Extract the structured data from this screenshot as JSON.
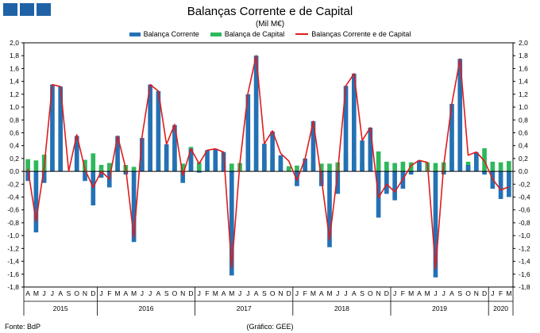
{
  "header": {
    "title": "Balanças Corrente e de Capital",
    "subtitle": "(Mil M€)"
  },
  "footer": {
    "source": "Fonte: BdP",
    "credit": "(Gráfico: GEE)"
  },
  "colors": {
    "current_account": "#2471b5",
    "capital_account": "#2eb85c",
    "combined": "#e11b1b",
    "logo": "#1f62a6"
  },
  "chart_data": {
    "type": "bar",
    "title": "Balanças Corrente e de Capital",
    "subtitle": "(Mil M€)",
    "ylim": [
      -1.8,
      2.0
    ],
    "yticks": [
      "2,0",
      "1,8",
      "1,6",
      "1,4",
      "1,2",
      "1,0",
      "0,8",
      "0,6",
      "0,4",
      "0,2",
      "0,0",
      "-0,2",
      "-0,4",
      "-0,6",
      "-0,8",
      "-1,0",
      "-1,2",
      "-1,4",
      "-1,6",
      "-1,8"
    ],
    "grid": false,
    "legend_position": "top-center",
    "categories": [
      "A",
      "M",
      "J",
      "J",
      "A",
      "S",
      "O",
      "N",
      "D",
      "J",
      "F",
      "M",
      "A",
      "M",
      "J",
      "J",
      "A",
      "S",
      "O",
      "N",
      "D",
      "J",
      "F",
      "M",
      "A",
      "M",
      "J",
      "J",
      "A",
      "S",
      "O",
      "N",
      "D",
      "J",
      "F",
      "M",
      "A",
      "M",
      "J",
      "J",
      "A",
      "S",
      "O",
      "N",
      "D",
      "J",
      "F",
      "M",
      "A",
      "M",
      "J",
      "J",
      "A",
      "S",
      "O",
      "N",
      "D",
      "J",
      "F",
      "M"
    ],
    "years": [
      {
        "label": "2015",
        "start": 0,
        "end": 9
      },
      {
        "label": "2016",
        "start": 9,
        "end": 21
      },
      {
        "label": "2017",
        "start": 21,
        "end": 33
      },
      {
        "label": "2018",
        "start": 33,
        "end": 45
      },
      {
        "label": "2019",
        "start": 45,
        "end": 57
      },
      {
        "label": "2020",
        "start": 57,
        "end": 60
      }
    ],
    "series": [
      {
        "name": "Balança Corrente",
        "kind": "bar",
        "values": [
          -0.15,
          -0.95,
          -0.18,
          1.35,
          1.32,
          0.0,
          0.55,
          -0.15,
          -0.53,
          -0.1,
          -0.25,
          0.55,
          -0.05,
          -1.1,
          0.52,
          1.35,
          1.25,
          0.42,
          0.72,
          -0.18,
          0.35,
          -0.02,
          0.33,
          0.35,
          0.3,
          -1.62,
          0.0,
          1.2,
          1.8,
          0.43,
          0.62,
          0.25,
          0.0,
          -0.23,
          0.2,
          0.78,
          -0.23,
          -1.18,
          -0.35,
          1.33,
          1.52,
          0.48,
          0.68,
          -0.72,
          -0.35,
          -0.45,
          -0.27,
          -0.05,
          0.17,
          0.0,
          -1.65,
          -0.05,
          1.05,
          1.75,
          0.1,
          0.3,
          -0.05,
          -0.27,
          -0.43,
          -0.4
        ]
      },
      {
        "name": "Balança de Capital",
        "kind": "bar",
        "values": [
          0.19,
          0.17,
          0.26,
          0.18,
          0.17,
          0.0,
          0.2,
          0.18,
          0.28,
          0.1,
          0.13,
          0.15,
          0.1,
          0.07,
          0.15,
          0.17,
          0.16,
          0.2,
          0.15,
          0.12,
          0.38,
          0.14,
          0.13,
          0.12,
          0.1,
          0.12,
          0.13,
          0.18,
          0.15,
          0.18,
          0.2,
          0.16,
          0.08,
          0.09,
          0.12,
          0.13,
          0.12,
          0.12,
          0.14,
          0.28,
          0.24,
          0.14,
          0.27,
          0.31,
          0.15,
          0.13,
          0.15,
          0.14,
          0.12,
          0.14,
          0.13,
          0.14,
          0.16,
          0.17,
          0.15,
          0.25,
          0.36,
          0.15,
          0.14,
          0.16
        ]
      },
      {
        "name": "Balanças Corrente e de Capital",
        "kind": "line",
        "values": [
          0.04,
          -0.78,
          0.08,
          1.35,
          1.32,
          0.0,
          0.57,
          0.03,
          -0.25,
          0.0,
          -0.12,
          0.55,
          0.05,
          -1.03,
          0.54,
          1.35,
          1.25,
          0.42,
          0.73,
          -0.06,
          0.35,
          0.12,
          0.33,
          0.35,
          0.3,
          -1.5,
          0.13,
          1.22,
          1.8,
          0.43,
          0.63,
          0.28,
          0.16,
          -0.14,
          0.2,
          0.78,
          -0.11,
          -1.06,
          0.0,
          1.33,
          1.52,
          0.48,
          0.68,
          -0.41,
          -0.2,
          -0.32,
          -0.12,
          0.09,
          0.17,
          0.14,
          -1.52,
          0.09,
          1.05,
          1.75,
          0.25,
          0.3,
          0.16,
          -0.12,
          -0.29,
          -0.24
        ]
      }
    ]
  }
}
